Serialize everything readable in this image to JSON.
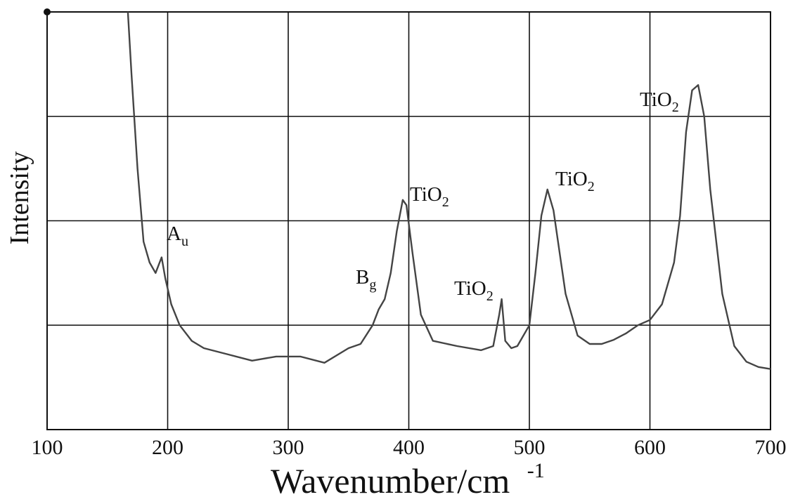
{
  "chart_data": {
    "type": "line",
    "xlabel": "Wavenumber/cm",
    "xlabel_sup": "-1",
    "ylabel": "Intensity",
    "xlim": [
      100,
      700
    ],
    "ylim": [
      0,
      4
    ],
    "x_ticks": [
      100,
      200,
      300,
      400,
      500,
      600,
      700
    ],
    "grid": true,
    "y_tick_labels_shown": false,
    "series": [
      {
        "x": [
          167,
          170,
          175,
          180,
          185,
          190,
          195,
          198,
          203,
          210,
          220,
          230,
          250,
          270,
          290,
          310,
          330,
          350,
          360,
          370,
          375,
          380,
          385,
          390,
          395,
          398,
          403,
          410,
          420,
          440,
          460,
          470,
          475,
          477,
          480,
          485,
          490,
          500,
          505,
          510,
          515,
          520,
          530,
          540,
          550,
          560,
          570,
          580,
          590,
          600,
          610,
          620,
          625,
          630,
          635,
          640,
          645,
          650,
          660,
          670,
          680,
          690,
          700
        ],
        "y": [
          4.0,
          3.4,
          2.5,
          1.8,
          1.6,
          1.5,
          1.65,
          1.45,
          1.2,
          1.0,
          0.85,
          0.78,
          0.72,
          0.66,
          0.7,
          0.7,
          0.64,
          0.78,
          0.82,
          1.0,
          1.15,
          1.25,
          1.5,
          1.9,
          2.2,
          2.15,
          1.7,
          1.1,
          0.85,
          0.8,
          0.76,
          0.8,
          1.1,
          1.25,
          0.85,
          0.78,
          0.8,
          1.0,
          1.5,
          2.05,
          2.3,
          2.1,
          1.3,
          0.9,
          0.82,
          0.82,
          0.86,
          0.92,
          1.0,
          1.05,
          1.2,
          1.6,
          2.05,
          2.85,
          3.25,
          3.3,
          3.0,
          2.3,
          1.3,
          0.8,
          0.65,
          0.6,
          0.58
        ]
      }
    ],
    "annotations": [
      {
        "base": "A",
        "sub": "u",
        "x": 200
      },
      {
        "base": "B",
        "sub": "g",
        "x": 375
      },
      {
        "base": "TiO",
        "sub": "2",
        "x": 398
      },
      {
        "base": "TiO",
        "sub": "2",
        "x": 477
      },
      {
        "base": "TiO",
        "sub": "2",
        "x": 516
      },
      {
        "base": "TiO",
        "sub": "2",
        "x": 640
      }
    ]
  }
}
